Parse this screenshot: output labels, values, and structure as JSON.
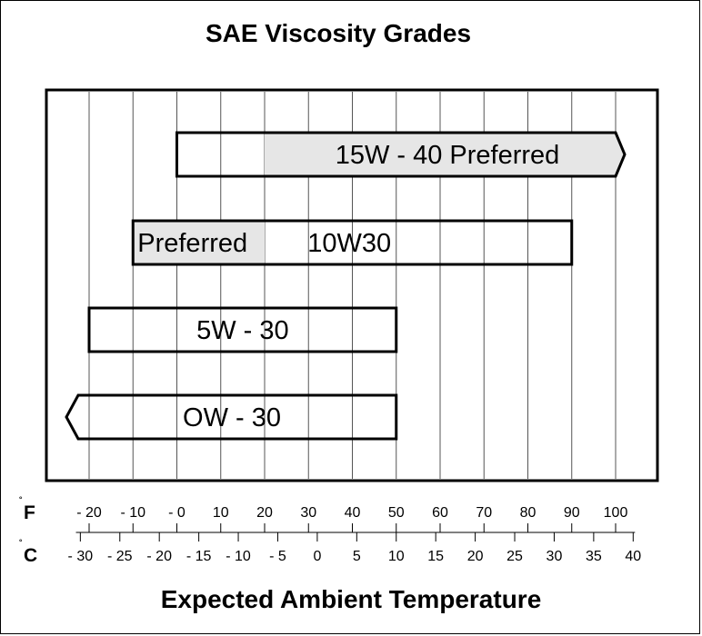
{
  "chart_data": {
    "type": "bar",
    "title": "SAE Viscosity Grades",
    "xlabel": "Expected Ambient Temperature",
    "x_units": {
      "fahrenheit": "F",
      "celsius": "C",
      "degree_symbol": "˚"
    },
    "xlim_f": [
      -20,
      100
    ],
    "grid": true,
    "fahrenheit_ticks": [
      {
        "value": -20,
        "label": "- 20"
      },
      {
        "value": -10,
        "label": "- 10"
      },
      {
        "value": 0,
        "label": "- 0"
      },
      {
        "value": 10,
        "label": "10"
      },
      {
        "value": 20,
        "label": "20"
      },
      {
        "value": 30,
        "label": "30"
      },
      {
        "value": 40,
        "label": "40"
      },
      {
        "value": 50,
        "label": "50"
      },
      {
        "value": 60,
        "label": "60"
      },
      {
        "value": 70,
        "label": "70"
      },
      {
        "value": 80,
        "label": "80"
      },
      {
        "value": 90,
        "label": "90"
      },
      {
        "value": 100,
        "label": "100"
      }
    ],
    "celsius_ticks": [
      {
        "value": -30,
        "label": "- 30"
      },
      {
        "value": -25,
        "label": "- 25"
      },
      {
        "value": -20,
        "label": "- 20"
      },
      {
        "value": -15,
        "label": "- 15"
      },
      {
        "value": -10,
        "label": "- 10"
      },
      {
        "value": -5,
        "label": "- 5"
      },
      {
        "value": 0,
        "label": "0"
      },
      {
        "value": 5,
        "label": "5"
      },
      {
        "value": 10,
        "label": "10"
      },
      {
        "value": 15,
        "label": "15"
      },
      {
        "value": 20,
        "label": "20"
      },
      {
        "value": 25,
        "label": "25"
      },
      {
        "value": 30,
        "label": "30"
      },
      {
        "value": 35,
        "label": "35"
      },
      {
        "value": 40,
        "label": "40"
      }
    ],
    "series": [
      {
        "name": "15W - 40",
        "label": "15W - 40  Preferred",
        "min_f": 0,
        "max_f": 100,
        "preferred_min_f": 20,
        "preferred_max_f": 100,
        "open_end": "high"
      },
      {
        "name": "10W30",
        "label": "10W30",
        "preferred_label": "Preferred",
        "min_f": -10,
        "max_f": 90,
        "preferred_min_f": -10,
        "preferred_max_f": 20,
        "open_end": "none"
      },
      {
        "name": "5W - 30",
        "label": "5W - 30",
        "min_f": -20,
        "max_f": 50,
        "open_end": "none"
      },
      {
        "name": "OW - 30",
        "label": "OW - 30",
        "min_f": -20,
        "max_f": 50,
        "open_end": "low"
      }
    ],
    "colors": {
      "preferred_fill": "#e6e6e6",
      "bar_fill": "#ffffff",
      "line": "#000000",
      "grid": "#555555"
    }
  }
}
